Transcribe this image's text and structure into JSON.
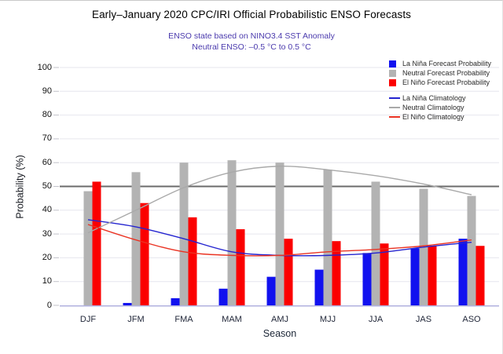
{
  "title": "Early–January 2020 CPC/IRI Official Probabilistic ENSO Forecasts",
  "subtitle": {
    "line1": "ENSO state based on NINO3.4 SST Anomaly",
    "line2": "Neutral ENSO: –0.5 °C to 0.5 °C",
    "color": "#4a3aad"
  },
  "colors": {
    "title_text": "#000000",
    "gridline": "#e6e6ee",
    "reference_line": "#6b6b6b",
    "bottom_axis": "#b1b1df",
    "tick_mark": "#c2c2ca",
    "tick_label": "#111111"
  },
  "chart_data": {
    "type": "grouped-bar+line",
    "title": "Early–January 2020 CPC/IRI Official Probabilistic ENSO Forecasts",
    "categories": [
      "DJF",
      "JFM",
      "FMA",
      "MAM",
      "AMJ",
      "MJJ",
      "JJA",
      "JAS",
      "ASO"
    ],
    "bar_series": [
      {
        "name": "La Niña Forecast Probability",
        "color": "#1111ef",
        "values": [
          0,
          1,
          3,
          7,
          12,
          15,
          22,
          24,
          28
        ]
      },
      {
        "name": "Neutral Forecast Probability",
        "color": "#b3b3b3",
        "values": [
          48,
          56,
          60,
          61,
          60,
          57,
          52,
          49,
          46
        ]
      },
      {
        "name": "El Niño Forecast Probability",
        "color": "#fb0000",
        "values": [
          52,
          43,
          37,
          32,
          28,
          27,
          26,
          25,
          25
        ]
      }
    ],
    "line_series": [
      {
        "name": "La Niña Climatology",
        "color": "#2424d0",
        "values": [
          36,
          33,
          28,
          22.5,
          21,
          21,
          22,
          24.5,
          26.5
        ]
      },
      {
        "name": "Neutral Climatology",
        "color": "#a9a9a9",
        "values": [
          30.5,
          40,
          49.5,
          56,
          58.5,
          57,
          54.5,
          51,
          46.5
        ]
      },
      {
        "name": "El Niño Climatology",
        "color": "#ea3323",
        "values": [
          34,
          27.5,
          22.5,
          21,
          21,
          22.5,
          23.5,
          25,
          27.5
        ]
      }
    ],
    "xlabel": "Season",
    "ylabel": "Probability (%)",
    "ylim": [
      0,
      100
    ],
    "yticks": [
      0,
      10,
      20,
      30,
      40,
      50,
      60,
      70,
      80,
      90,
      100
    ],
    "reference_line": 50,
    "grid": true,
    "legend_position": "top-right"
  }
}
